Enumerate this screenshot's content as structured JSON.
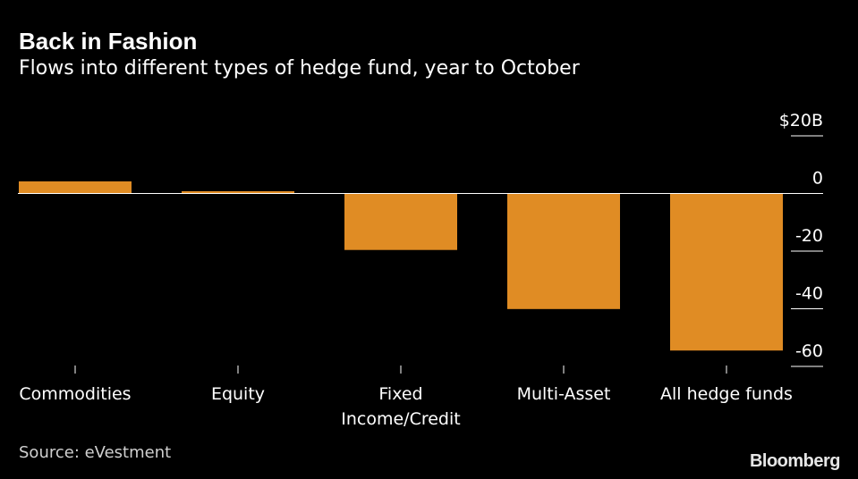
{
  "header": {
    "title": "Back in Fashion",
    "subtitle": "Flows into different types of hedge fund, year to October"
  },
  "footer": {
    "source": "Source: eVestment",
    "brand": "Bloomberg"
  },
  "colors": {
    "background": "#000000",
    "bar": "#e08c24",
    "axis": "#ffffff",
    "text": "#ffffff"
  },
  "chart_data": {
    "type": "bar",
    "title": "Back in Fashion",
    "subtitle": "Flows into different types of hedge fund, year to October",
    "categories": [
      [
        "Commodities"
      ],
      [
        "Equity"
      ],
      [
        "Fixed",
        "Income/Credit"
      ],
      [
        "Multi-Asset"
      ],
      [
        "All hedge funds"
      ]
    ],
    "values": [
      4.2,
      0.8,
      -19.6,
      -40.1,
      -54.5
    ],
    "unit": "$B",
    "ylim": [
      -60,
      20
    ],
    "yticks": [
      20,
      0,
      -20,
      -40,
      -60
    ],
    "ytick_labels": [
      "$20B",
      "0",
      "-20",
      "-40",
      "-60"
    ],
    "y_axis_side": "right",
    "xlabel": "",
    "ylabel": "",
    "grid": false,
    "legend": "none"
  }
}
